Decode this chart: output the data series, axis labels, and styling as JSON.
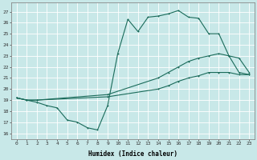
{
  "xlabel": "Humidex (Indice chaleur)",
  "background_color": "#c8e8e8",
  "grid_color": "#ffffff",
  "line_color": "#1a6b5a",
  "xlim": [
    -0.5,
    23.5
  ],
  "ylim": [
    15.5,
    27.8
  ],
  "yticks": [
    16,
    17,
    18,
    19,
    20,
    21,
    22,
    23,
    24,
    25,
    26,
    27
  ],
  "xticks": [
    0,
    1,
    2,
    3,
    4,
    5,
    6,
    7,
    8,
    9,
    10,
    11,
    12,
    13,
    14,
    15,
    16,
    17,
    18,
    19,
    20,
    21,
    22,
    23
  ],
  "line1_x": [
    0,
    1,
    2,
    3,
    4,
    5,
    6,
    7,
    8,
    9,
    10,
    11,
    12,
    13,
    14,
    15,
    16,
    17,
    18,
    19,
    20,
    21,
    22,
    23
  ],
  "line1_y": [
    19.2,
    19.0,
    18.8,
    18.5,
    18.3,
    17.2,
    17.0,
    16.5,
    16.3,
    18.5,
    23.2,
    26.3,
    25.2,
    26.5,
    26.6,
    26.8,
    27.1,
    26.5,
    26.4,
    25.0,
    25.0,
    23.0,
    21.5,
    21.3
  ],
  "line2_x": [
    0,
    1,
    2,
    9,
    14,
    15,
    16,
    17,
    18,
    19,
    20,
    21,
    22,
    23
  ],
  "line2_y": [
    19.2,
    19.0,
    19.0,
    19.5,
    21.0,
    21.5,
    22.0,
    22.5,
    22.8,
    23.0,
    23.2,
    23.0,
    22.8,
    21.5
  ],
  "line3_x": [
    0,
    1,
    2,
    9,
    14,
    15,
    16,
    17,
    18,
    19,
    20,
    21,
    22,
    23
  ],
  "line3_y": [
    19.2,
    19.0,
    19.0,
    19.3,
    20.0,
    20.3,
    20.7,
    21.0,
    21.2,
    21.5,
    21.5,
    21.5,
    21.3,
    21.3
  ]
}
